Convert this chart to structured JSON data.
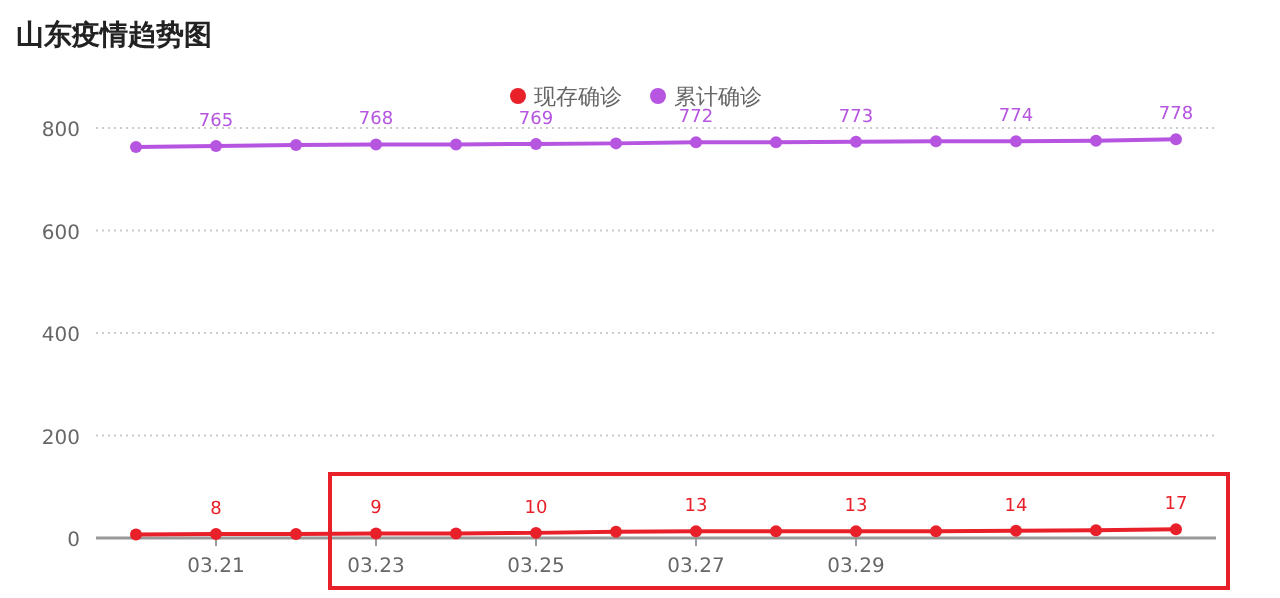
{
  "chart_data": {
    "type": "line",
    "title": "山东疫情趋势图",
    "categories": [
      null,
      "03.21",
      null,
      "03.23",
      null,
      "03.25",
      null,
      "03.27",
      null,
      "03.29",
      null,
      null,
      null,
      null
    ],
    "series": [
      {
        "name": "现存确诊",
        "color": "#e8202a",
        "values": [
          7,
          8,
          8,
          9,
          9,
          10,
          12,
          13,
          13,
          13,
          13,
          14,
          15,
          17
        ],
        "value_labels": [
          null,
          "8",
          null,
          "9",
          null,
          "10",
          null,
          "13",
          null,
          "13",
          null,
          "14",
          null,
          "17"
        ]
      },
      {
        "name": "累计确诊",
        "color": "#b655e0",
        "values": [
          763,
          765,
          767,
          768,
          768,
          769,
          770,
          772,
          772,
          773,
          774,
          774,
          775,
          778
        ],
        "value_labels": [
          null,
          "765",
          null,
          "768",
          null,
          "769",
          null,
          "772",
          null,
          "773",
          null,
          "774",
          null,
          "778"
        ]
      }
    ],
    "ylim": [
      0,
      800
    ],
    "yticks": [
      0,
      200,
      400,
      600,
      800
    ],
    "grid": "y",
    "legend": "top",
    "marker": "circle",
    "line_style": "solid"
  }
}
